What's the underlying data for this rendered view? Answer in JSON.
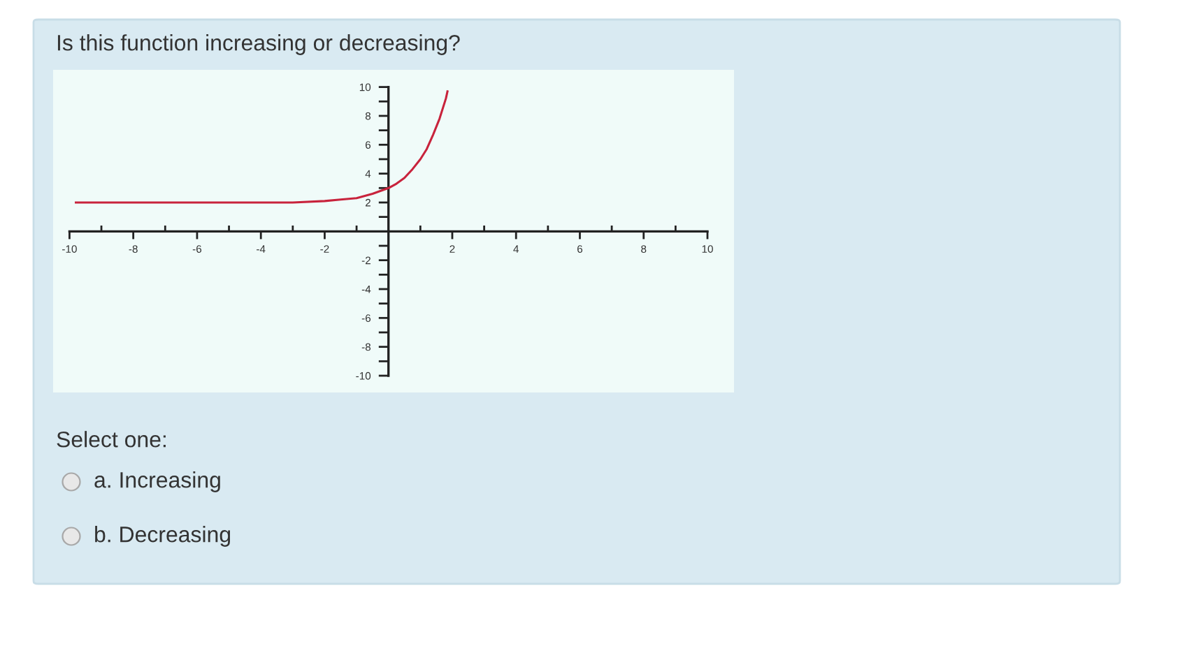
{
  "chart_data": {
    "type": "line",
    "title": "Is this function increasing or decreasing?",
    "annotations": [
      "Select one:",
      "a. Increasing",
      "b. Decreasing"
    ],
    "x": [
      -9.8,
      -8,
      -6,
      -4,
      -3,
      -2,
      -1.5,
      -1,
      -0.5,
      0,
      0.25,
      0.5,
      0.75,
      1,
      1.2,
      1.4,
      1.6,
      1.8,
      1.85
    ],
    "series": [
      {
        "color": "#c8233c",
        "values": [
          2,
          2,
          2,
          2,
          2,
          2.1,
          2.2,
          2.3,
          2.6,
          3,
          3.3,
          3.7,
          4.3,
          5,
          5.7,
          6.7,
          7.8,
          9.2,
          9.7
        ]
      }
    ],
    "xlim": [
      -10,
      10
    ],
    "ylim": [
      -10,
      10
    ],
    "xticks": [
      -10,
      {
        "value": -9,
        "label": null
      },
      -8,
      {
        "value": -7,
        "label": null
      },
      -6,
      {
        "value": -5,
        "label": null
      },
      -4,
      {
        "value": -3,
        "label": null
      },
      -2,
      {
        "value": -1,
        "label": null
      },
      {
        "value": 1,
        "label": null
      },
      2,
      {
        "value": 3,
        "label": null
      },
      4,
      {
        "value": 5,
        "label": null
      },
      6,
      {
        "value": 7,
        "label": null
      },
      8,
      {
        "value": 9,
        "label": null
      },
      10
    ],
    "yticks": [
      -10,
      {
        "value": -9,
        "label": null
      },
      -8,
      {
        "value": -7,
        "label": null
      },
      -6,
      {
        "value": -5,
        "label": null
      },
      -4,
      {
        "value": -3,
        "label": null
      },
      -2,
      {
        "value": -1,
        "label": null
      },
      {
        "value": 1,
        "label": null
      },
      2,
      {
        "value": 3,
        "label": null
      },
      4,
      {
        "value": 5,
        "label": null
      },
      6,
      {
        "value": 7,
        "label": null
      },
      8,
      {
        "value": 9,
        "label": null
      },
      10
    ]
  }
}
